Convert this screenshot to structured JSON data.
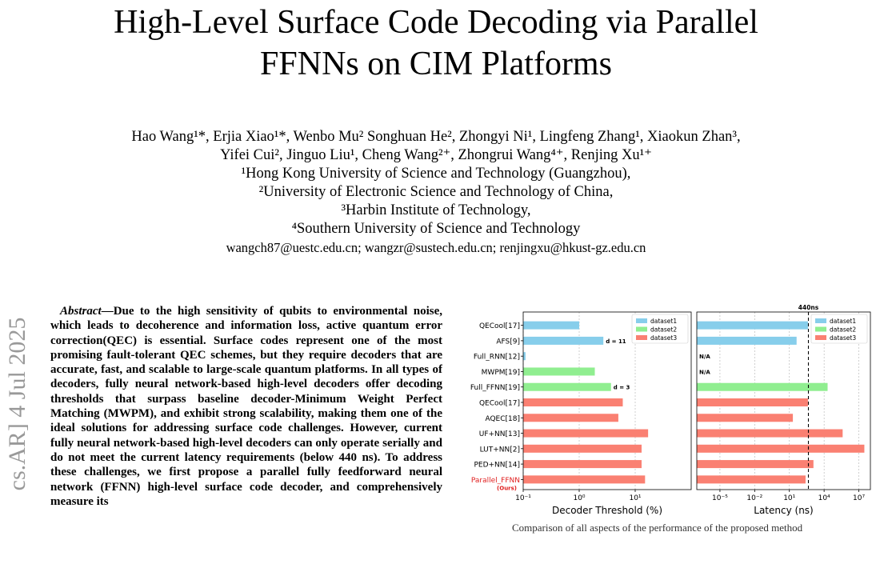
{
  "paper": {
    "title_lines": [
      "High-Level Surface Code Decoding via Parallel",
      "FFNNs on CIM Platforms"
    ],
    "authors_line1": "Hao Wang¹*, Erjia Xiao¹*, Wenbo Mu² Songhuan He², Zhongyi Ni¹, Lingfeng Zhang¹, Xiaokun Zhan³,",
    "authors_line2": "Yifei Cui², Jinguo Liu¹, Cheng Wang²⁺, Zhongrui Wang⁴⁺, Renjing Xu¹⁺",
    "affiliations": [
      "¹Hong Kong University of Science and Technology (Guangzhou),",
      "²University of Electronic Science and Technology of China,",
      "³Harbin Institute of Technology,",
      "⁴Southern University of Science and Technology"
    ],
    "emails": "wangch87@uestc.edu.cn; wangzr@sustech.edu.cn; renjingxu@hkust-gz.edu.cn",
    "arxiv_stamp": "cs.AR]  4 Jul 2025",
    "abstract_lead": "Abstract",
    "abstract_body": "—Due to the high sensitivity of qubits to environmental noise, which leads to decoherence and information loss, active quantum error correction(QEC) is essential. Surface codes represent one of the most promising fault-tolerant QEC schemes, but they require decoders that are accurate, fast, and scalable to large-scale quantum platforms. In all types of decoders, fully neural network-based high-level decoders offer decoding thresholds that surpass baseline decoder-Minimum Weight Perfect Matching (MWPM), and exhibit strong scalability, making them one of the ideal solutions for addressing surface code challenges. However, current fully neural network-based high-level decoders can only operate serially and do not meet the current latency requirements (below 440 ns). To address these challenges, we first propose a parallel fully feedforward neural network (FFNN) high-level surface code decoder, and comprehensively measure its",
    "caption_fragment": "Comparison of all aspects of the performance of the proposed method"
  },
  "chart_data": [
    {
      "type": "bar",
      "orientation": "horizontal",
      "xlabel": "Decoder Threshold (%)",
      "xscale": "log",
      "xlim": [
        0.1,
        100
      ],
      "xticks": [
        "10⁻¹",
        "10⁰",
        "10¹"
      ],
      "xtick_values": [
        0.1,
        1,
        10
      ],
      "grid": true,
      "legend": "top-right",
      "series_colors": {
        "dataset1": "#87ceeb",
        "dataset2": "#90ee90",
        "dataset3": "#fa8072"
      },
      "legend_entries": [
        "dataset1",
        "dataset2",
        "dataset3"
      ],
      "categories": [
        "QECool[17]",
        "AFS[9]",
        "Full_RNN[12]",
        "MWPM[19]",
        "Full_FFNN[19]",
        "QECool[17]",
        "AQEC[18]",
        "UF+NN[13]",
        "LUT+NN[2]",
        "PED+NN[14]",
        "Parallel_FFNN"
      ],
      "highlight_label": "(Ours)",
      "highlight_color": "#e02020",
      "bars": [
        {
          "category": "QECool[17]",
          "series": "dataset1",
          "value": 1.0
        },
        {
          "category": "AFS[9]",
          "series": "dataset1",
          "value": 2.7,
          "annotation": "d = 11"
        },
        {
          "category": "Full_RNN[12]",
          "series": "dataset1",
          "value": 0.11
        },
        {
          "category": "MWPM[19]",
          "series": "dataset2",
          "value": 1.9
        },
        {
          "category": "Full_FFNN[19]",
          "series": "dataset2",
          "value": 3.7,
          "annotation": "d = 3"
        },
        {
          "category": "QECool[17]",
          "series": "dataset3",
          "value": 6.0
        },
        {
          "category": "AQEC[18]",
          "series": "dataset3",
          "value": 5.0
        },
        {
          "category": "UF+NN[13]",
          "series": "dataset3",
          "value": 17.0
        },
        {
          "category": "LUT+NN[2]",
          "series": "dataset3",
          "value": 13.0
        },
        {
          "category": "PED+NN[14]",
          "series": "dataset3",
          "value": 13.0
        },
        {
          "category": "Parallel_FFNN",
          "series": "dataset3",
          "value": 15.0
        }
      ]
    },
    {
      "type": "bar",
      "orientation": "horizontal",
      "xlabel": "Latency (ns)",
      "xscale": "log",
      "xlim": [
        1e-07,
        100000000.0
      ],
      "xticks": [
        "10⁻⁵",
        "10⁻²",
        "10¹",
        "10⁴",
        "10⁷"
      ],
      "xtick_values": [
        1e-05,
        0.01,
        10,
        10000,
        10000000
      ],
      "grid": true,
      "legend": "top-right",
      "legend_entries": [
        "dataset1",
        "dataset2",
        "dataset3"
      ],
      "reference_line": {
        "value": 440,
        "label": "440ns",
        "style": "dashed"
      },
      "bars": [
        {
          "category": "QECool[17]",
          "series": "dataset1",
          "value": 400
        },
        {
          "category": "AFS[9]",
          "series": "dataset1",
          "value": 42
        },
        {
          "category": "Full_RNN[12]",
          "series": "dataset1",
          "value": null,
          "annotation": "N/A"
        },
        {
          "category": "MWPM[19]",
          "series": "dataset2",
          "value": null,
          "annotation": "N/A"
        },
        {
          "category": "Full_FFNN[19]",
          "series": "dataset2",
          "value": 20000
        },
        {
          "category": "QECool[17]",
          "series": "dataset3",
          "value": 400
        },
        {
          "category": "AQEC[18]",
          "series": "dataset3",
          "value": 20
        },
        {
          "category": "UF+NN[13]",
          "series": "dataset3",
          "value": 400000
        },
        {
          "category": "LUT+NN[2]",
          "series": "dataset3",
          "value": 30000000
        },
        {
          "category": "PED+NN[14]",
          "series": "dataset3",
          "value": 1200
        },
        {
          "category": "Parallel_FFNN",
          "series": "dataset3",
          "value": 250
        }
      ]
    }
  ]
}
